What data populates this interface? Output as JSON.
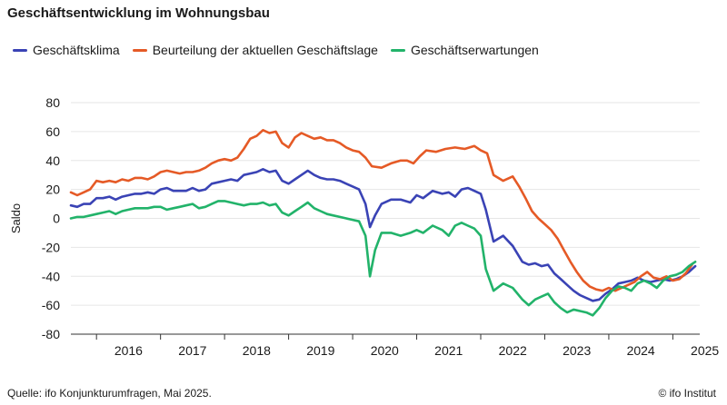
{
  "header": {
    "title": "Geschäftsentwicklung im Wohnungsbau"
  },
  "footer": {
    "source": "Quelle: ifo Konjunkturumfragen, Mai 2025.",
    "copyright": "© ifo Institut"
  },
  "colors": {
    "klima": "#3a43b5",
    "lage": "#e55a26",
    "erwartungen": "#22b36a",
    "grid": "#e6e6e6"
  },
  "chart_data": {
    "type": "line",
    "ylabel": "Saldo",
    "xlabel": "",
    "ylim": [
      -80,
      80
    ],
    "yticks": [
      80,
      60,
      40,
      20,
      0,
      -20,
      -40,
      -60,
      -80
    ],
    "xlim": [
      2015.6,
      2025.42
    ],
    "xtick_labels": [
      "2016",
      "2017",
      "2018",
      "2019",
      "2020",
      "2021",
      "2022",
      "2023",
      "2024",
      "2025"
    ],
    "grid": true,
    "legend_position": "top",
    "series": [
      {
        "name": "Geschäftsklima",
        "color_key": "klima",
        "x": [
          2015.6,
          2015.7,
          2015.8,
          2015.9,
          2016.0,
          2016.1,
          2016.2,
          2016.3,
          2016.4,
          2016.5,
          2016.6,
          2016.7,
          2016.8,
          2016.9,
          2017.0,
          2017.1,
          2017.2,
          2017.3,
          2017.4,
          2017.5,
          2017.6,
          2017.7,
          2017.8,
          2017.9,
          2018.0,
          2018.1,
          2018.2,
          2018.3,
          2018.4,
          2018.5,
          2018.6,
          2018.7,
          2018.8,
          2018.9,
          2019.0,
          2019.1,
          2019.2,
          2019.3,
          2019.4,
          2019.5,
          2019.6,
          2019.7,
          2019.8,
          2019.9,
          2020.0,
          2020.1,
          2020.2,
          2020.27,
          2020.35,
          2020.45,
          2020.6,
          2020.75,
          2020.9,
          2021.0,
          2021.1,
          2021.25,
          2021.4,
          2021.5,
          2021.6,
          2021.7,
          2021.8,
          2021.9,
          2022.0,
          2022.08,
          2022.2,
          2022.35,
          2022.5,
          2022.65,
          2022.75,
          2022.85,
          2022.95,
          2023.05,
          2023.15,
          2023.25,
          2023.35,
          2023.45,
          2023.55,
          2023.65,
          2023.75,
          2023.85,
          2023.95,
          2024.05,
          2024.15,
          2024.25,
          2024.35,
          2024.45,
          2024.55,
          2024.65,
          2024.75,
          2024.85,
          2024.95,
          2025.05,
          2025.15,
          2025.25,
          2025.35
        ],
        "y": [
          9,
          8,
          10,
          10,
          14,
          14,
          15,
          13,
          15,
          16,
          17,
          17,
          18,
          17,
          20,
          21,
          19,
          19,
          19,
          21,
          19,
          20,
          24,
          25,
          26,
          27,
          26,
          30,
          31,
          32,
          34,
          32,
          33,
          26,
          24,
          27,
          30,
          33,
          30,
          28,
          27,
          27,
          26,
          24,
          22,
          20,
          10,
          -6,
          2,
          10,
          13,
          13,
          11,
          16,
          14,
          19,
          17,
          18,
          15,
          20,
          21,
          19,
          17,
          6,
          -16,
          -12,
          -19,
          -30,
          -32,
          -31,
          -33,
          -32,
          -38,
          -42,
          -46,
          -50,
          -53,
          -55,
          -57,
          -56,
          -52,
          -49,
          -45,
          -44,
          -43,
          -41,
          -43,
          -44,
          -43,
          -42,
          -43,
          -42,
          -40,
          -37,
          -33
        ]
      },
      {
        "name": "Beurteilung der aktuellen Geschäftslage",
        "color_key": "lage",
        "x": [
          2015.6,
          2015.7,
          2015.8,
          2015.9,
          2016.0,
          2016.1,
          2016.2,
          2016.3,
          2016.4,
          2016.5,
          2016.6,
          2016.7,
          2016.8,
          2016.9,
          2017.0,
          2017.1,
          2017.2,
          2017.3,
          2017.4,
          2017.5,
          2017.6,
          2017.7,
          2017.8,
          2017.9,
          2018.0,
          2018.1,
          2018.2,
          2018.3,
          2018.4,
          2018.5,
          2018.6,
          2018.7,
          2018.8,
          2018.9,
          2019.0,
          2019.1,
          2019.2,
          2019.3,
          2019.4,
          2019.5,
          2019.6,
          2019.7,
          2019.8,
          2019.9,
          2020.0,
          2020.1,
          2020.2,
          2020.3,
          2020.45,
          2020.6,
          2020.75,
          2020.85,
          2020.95,
          2021.05,
          2021.15,
          2021.3,
          2021.45,
          2021.6,
          2021.75,
          2021.9,
          2022.0,
          2022.1,
          2022.2,
          2022.35,
          2022.5,
          2022.6,
          2022.7,
          2022.8,
          2022.9,
          2023.0,
          2023.1,
          2023.2,
          2023.3,
          2023.4,
          2023.5,
          2023.6,
          2023.7,
          2023.8,
          2023.9,
          2024.0,
          2024.1,
          2024.2,
          2024.3,
          2024.4,
          2024.5,
          2024.6,
          2024.7,
          2024.8,
          2024.9,
          2025.0,
          2025.1,
          2025.2,
          2025.3
        ],
        "y": [
          18,
          16,
          18,
          20,
          26,
          25,
          26,
          25,
          27,
          26,
          28,
          28,
          27,
          29,
          32,
          33,
          32,
          31,
          32,
          32,
          33,
          35,
          38,
          40,
          41,
          40,
          42,
          48,
          55,
          57,
          61,
          59,
          60,
          52,
          49,
          56,
          59,
          57,
          55,
          56,
          54,
          54,
          52,
          49,
          47,
          46,
          42,
          36,
          35,
          38,
          40,
          40,
          38,
          43,
          47,
          46,
          48,
          49,
          48,
          50,
          47,
          45,
          30,
          26,
          29,
          22,
          14,
          5,
          0,
          -4,
          -8,
          -14,
          -22,
          -30,
          -37,
          -43,
          -47,
          -49,
          -50,
          -48,
          -50,
          -48,
          -46,
          -44,
          -40,
          -37,
          -41,
          -42,
          -40,
          -43,
          -42,
          -38,
          -32
        ]
      },
      {
        "name": "Geschäftserwartungen",
        "color_key": "erwartungen",
        "x": [
          2015.6,
          2015.7,
          2015.8,
          2015.9,
          2016.0,
          2016.1,
          2016.2,
          2016.3,
          2016.4,
          2016.5,
          2016.6,
          2016.7,
          2016.8,
          2016.9,
          2017.0,
          2017.1,
          2017.2,
          2017.3,
          2017.4,
          2017.5,
          2017.6,
          2017.7,
          2017.8,
          2017.9,
          2018.0,
          2018.1,
          2018.2,
          2018.3,
          2018.4,
          2018.5,
          2018.6,
          2018.7,
          2018.8,
          2018.9,
          2019.0,
          2019.1,
          2019.2,
          2019.3,
          2019.4,
          2019.5,
          2019.6,
          2019.7,
          2019.8,
          2019.9,
          2020.0,
          2020.1,
          2020.2,
          2020.27,
          2020.35,
          2020.45,
          2020.6,
          2020.75,
          2020.9,
          2021.0,
          2021.1,
          2021.25,
          2021.4,
          2021.5,
          2021.6,
          2021.7,
          2021.8,
          2021.9,
          2022.0,
          2022.08,
          2022.2,
          2022.35,
          2022.5,
          2022.65,
          2022.75,
          2022.85,
          2022.95,
          2023.05,
          2023.15,
          2023.25,
          2023.35,
          2023.45,
          2023.55,
          2023.65,
          2023.75,
          2023.85,
          2023.95,
          2024.05,
          2024.15,
          2024.25,
          2024.35,
          2024.45,
          2024.55,
          2024.65,
          2024.75,
          2024.85,
          2024.95,
          2025.05,
          2025.15,
          2025.25,
          2025.35
        ],
        "y": [
          0,
          1,
          1,
          2,
          3,
          4,
          5,
          3,
          5,
          6,
          7,
          7,
          7,
          8,
          8,
          6,
          7,
          8,
          9,
          10,
          7,
          8,
          10,
          12,
          12,
          11,
          10,
          9,
          10,
          10,
          11,
          9,
          10,
          4,
          2,
          5,
          8,
          11,
          7,
          5,
          3,
          2,
          1,
          0,
          -1,
          -2,
          -12,
          -40,
          -22,
          -10,
          -10,
          -12,
          -10,
          -8,
          -10,
          -5,
          -8,
          -12,
          -5,
          -3,
          -5,
          -7,
          -12,
          -35,
          -50,
          -45,
          -48,
          -56,
          -60,
          -56,
          -54,
          -52,
          -58,
          -62,
          -65,
          -63,
          -64,
          -65,
          -67,
          -62,
          -55,
          -50,
          -47,
          -48,
          -50,
          -45,
          -43,
          -45,
          -48,
          -43,
          -40,
          -39,
          -37,
          -33,
          -30
        ]
      }
    ]
  }
}
